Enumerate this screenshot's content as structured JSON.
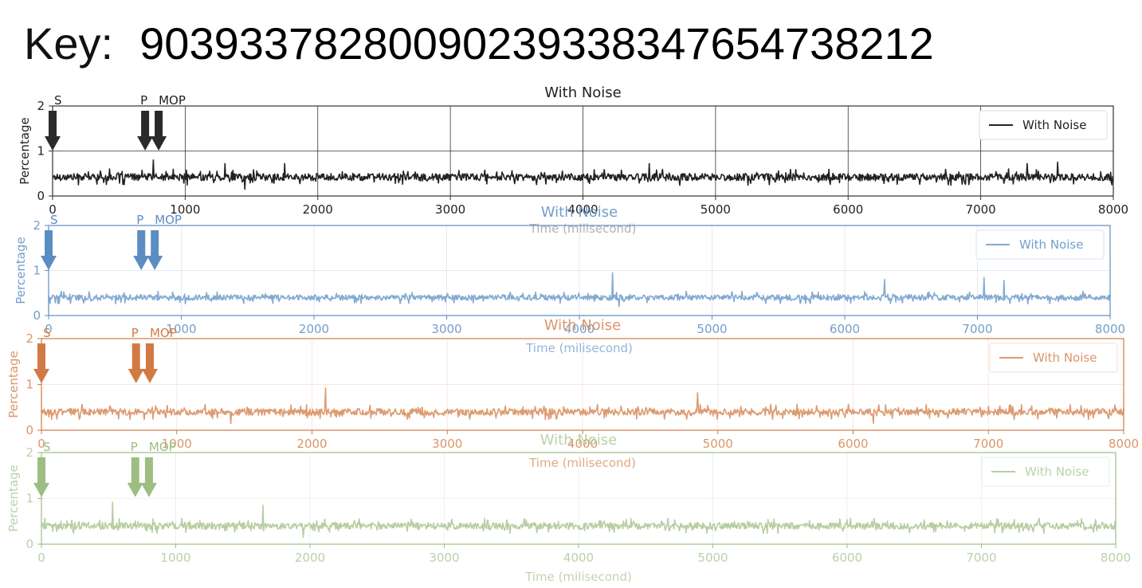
{
  "key": {
    "label": "Key:",
    "value": "90393378280090239338347654738212"
  },
  "chart_data": [
    {
      "type": "line",
      "title": "With Noise",
      "xlabel": "Time (milisecond)",
      "ylabel": "Percentage",
      "xlim": [
        0,
        8000
      ],
      "ylim": [
        0,
        2
      ],
      "xticks": [
        0,
        1000,
        2000,
        3000,
        4000,
        5000,
        6000,
        7000,
        8000
      ],
      "yticks": [
        0,
        1,
        2
      ],
      "legend": "top-right",
      "grid": true,
      "color": "#222222",
      "series": [
        {
          "name": "With Noise",
          "baseline": 0.42,
          "noise_amplitude": 0.13,
          "spikes": [
            [
              760,
              0.8
            ],
            [
              1300,
              0.72
            ],
            [
              1450,
              0.15
            ],
            [
              1750,
              0.72
            ],
            [
              4500,
              0.72
            ],
            [
              7350,
              0.72
            ],
            [
              7580,
              0.75
            ]
          ]
        }
      ],
      "annotations": [
        {
          "label": "S",
          "x": 0
        },
        {
          "label": "P",
          "x": 770
        },
        {
          "label": "MOP",
          "x": 860
        }
      ]
    },
    {
      "type": "line",
      "title": "With Noise",
      "xlabel": "Time (milisecond)",
      "ylabel": "Percentage",
      "xlim": [
        0,
        8000
      ],
      "ylim": [
        0,
        2
      ],
      "xticks": [
        0,
        1000,
        2000,
        3000,
        4000,
        5000,
        6000,
        7000,
        8000
      ],
      "yticks": [
        0,
        1,
        2
      ],
      "legend": "top-right",
      "grid": true,
      "color": "#5b8dc2",
      "series": [
        {
          "name": "With Noise",
          "baseline": 0.4,
          "noise_amplitude": 0.1,
          "spikes": [
            [
              4250,
              0.95
            ],
            [
              4300,
              0.2
            ],
            [
              6300,
              0.8
            ],
            [
              7050,
              0.85
            ],
            [
              7200,
              0.78
            ]
          ]
        }
      ],
      "annotations": [
        {
          "label": "S",
          "x": 0
        },
        {
          "label": "P",
          "x": 770
        },
        {
          "label": "MOP",
          "x": 860
        }
      ]
    },
    {
      "type": "line",
      "title": "With Noise",
      "xlabel": "Time (milisecond)",
      "ylabel": "Percentage",
      "xlim": [
        0,
        8000
      ],
      "ylim": [
        0,
        2
      ],
      "xticks": [
        0,
        1000,
        2000,
        3000,
        4000,
        5000,
        6000,
        7000,
        8000
      ],
      "yticks": [
        0,
        1,
        2
      ],
      "legend": "top-right",
      "grid": true,
      "color": "#d27a43",
      "series": [
        {
          "name": "With Noise",
          "baseline": 0.4,
          "noise_amplitude": 0.12,
          "spikes": [
            [
              2100,
              0.92
            ],
            [
              1400,
              0.15
            ],
            [
              4850,
              0.82
            ],
            [
              6150,
              0.15
            ]
          ]
        }
      ],
      "annotations": [
        {
          "label": "S",
          "x": 0
        },
        {
          "label": "P",
          "x": 770
        },
        {
          "label": "MOP",
          "x": 860
        }
      ]
    },
    {
      "type": "line",
      "title": "With Noise",
      "xlabel": "Time (milisecond)",
      "ylabel": "Percentage",
      "xlim": [
        0,
        8000
      ],
      "ylim": [
        0,
        2
      ],
      "xticks": [
        0,
        1000,
        2000,
        3000,
        4000,
        5000,
        6000,
        7000,
        8000
      ],
      "yticks": [
        0,
        1,
        2
      ],
      "legend": "top-right",
      "grid": true,
      "color": "#9dbe82",
      "series": [
        {
          "name": "With Noise",
          "baseline": 0.4,
          "noise_amplitude": 0.12,
          "spikes": [
            [
              530,
              0.92
            ],
            [
              1650,
              0.85
            ],
            [
              1950,
              0.15
            ]
          ]
        }
      ],
      "annotations": [
        {
          "label": "S",
          "x": 0
        },
        {
          "label": "P",
          "x": 770
        },
        {
          "label": "MOP",
          "x": 860
        }
      ]
    }
  ]
}
